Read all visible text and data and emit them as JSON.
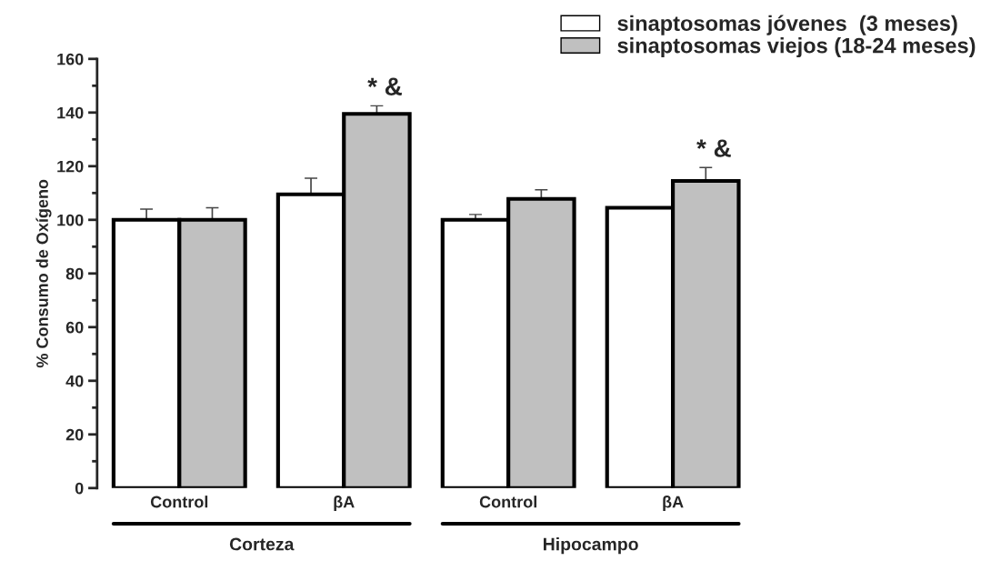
{
  "chart_data": {
    "type": "bar",
    "ylabel": "% Consumo de Oxígeno",
    "categories": [
      "Control",
      "βA",
      "Control",
      "βA"
    ],
    "series": [
      {
        "name": "sinaptosomas jóvenes  (3 meses)",
        "color": "#ffffff",
        "values": [
          100,
          109.5,
          100,
          104.5
        ],
        "errors": [
          4,
          6,
          2,
          null
        ]
      },
      {
        "name": "sinaptosomas viejos (18-24 meses)",
        "color": "#c0c0c0",
        "values": [
          100,
          139.5,
          107.8,
          114.5
        ],
        "errors": [
          4.5,
          3,
          3.4,
          5
        ],
        "value_labels": [
          null,
          "* &",
          null,
          "* &"
        ]
      }
    ],
    "annotations": [
      "Corteza",
      "Hipocampo"
    ],
    "ylim": [
      0,
      160
    ],
    "yticks": [
      0,
      20,
      40,
      60,
      80,
      100,
      120,
      140,
      160
    ],
    "grid": false,
    "legend": "top right"
  }
}
